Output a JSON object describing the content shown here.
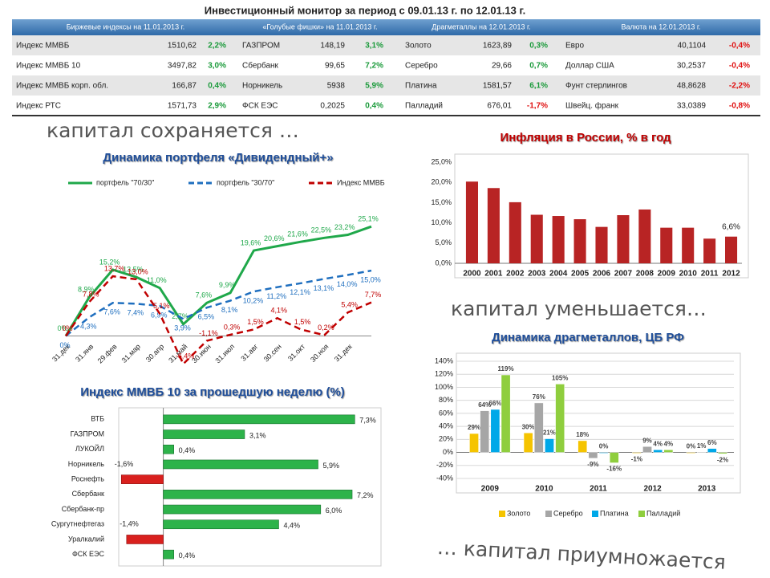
{
  "title": "Инвестиционный монитор за период с 09.01.13 г. по 12.01.13 г.",
  "table": {
    "header": [
      "Биржевые индексы на 11.01.2013 г.",
      "«Голубые фишки» на 11.01.2013 г.",
      "Драгметаллы на 12.01.2013 г.",
      "Валюта на 12.01.2013 г."
    ],
    "rows": [
      [
        "Индекс ММВБ",
        "1510,62",
        "2,2%",
        "ГАЗПРОМ",
        "148,19",
        "3,1%",
        "Золото",
        "1623,89",
        "0,3%",
        "Евро",
        "40,1104",
        "-0,4%"
      ],
      [
        "Индекс ММВБ 10",
        "3497,82",
        "3,0%",
        "Сбербанк",
        "99,65",
        "7,2%",
        "Серебро",
        "29,66",
        "0,7%",
        "Доллар США",
        "30,2537",
        "-0,4%"
      ],
      [
        "Индекс ММВБ корп. обл.",
        "166,87",
        "0,4%",
        "Норникель",
        "5938",
        "5,9%",
        "Платина",
        "1581,57",
        "6,1%",
        "Фунт стерлингов",
        "48,8628",
        "-2,2%"
      ],
      [
        "Индекс РТС",
        "1571,73",
        "2,9%",
        "ФСК ЕЭС",
        "0,2025",
        "0,4%",
        "Палладий",
        "676,01",
        "-1,7%",
        "Швейц. франк",
        "33,0389",
        "-0,8%"
      ]
    ]
  },
  "captions": [
    "капитал сохраняется …",
    "капитал уменьшается…",
    "… капитал приумножается"
  ],
  "chart_data": [
    {
      "type": "line",
      "title": "Динамика портфеля «Дивидендный+»",
      "categories": [
        "31.дек",
        "31.янв",
        "29.фев",
        "31.мар",
        "30.апр",
        "31.май",
        "30.июн",
        "31.июл",
        "31.авг",
        "30.сен",
        "31.окт",
        "30.ноя",
        "31.дек",
        null
      ],
      "ylim": [
        -8,
        29
      ],
      "series": [
        {
          "name": "портфель \"70/30\"",
          "color": "#1fa84a",
          "dash": false,
          "values": [
            0,
            8.9,
            15.2,
            13.5,
            11.0,
            2.7,
            7.6,
            9.9,
            19.6,
            20.6,
            21.6,
            22.5,
            23.2,
            25.1
          ],
          "value_labels": [
            "0%",
            "8,9%",
            "15,2%",
            "13,5%",
            "11,0%",
            "2,7%",
            "7,6%",
            "9,9%",
            "19,6%",
            "20,6%",
            "21,6%",
            "22,5%",
            "23,2%",
            "25,1%"
          ]
        },
        {
          "name": "портфель \"30/70\"",
          "color": "#1f6fbf",
          "dash": true,
          "values": [
            0,
            4.3,
            7.6,
            7.4,
            6.9,
            3.9,
            6.5,
            8.1,
            10.2,
            11.2,
            12.1,
            13.1,
            14.0,
            15.0
          ],
          "value_labels": [
            "0%",
            "4,3%",
            "7,6%",
            "7,4%",
            "6,9%",
            "3,9%",
            "6,5%",
            "8,1%",
            "10,2%",
            "11,2%",
            "12,1%",
            "13,1%",
            "14,0%",
            "15,0%"
          ]
        },
        {
          "name": "Индекс ММВБ",
          "color": "#c00000",
          "dash": true,
          "values": [
            0,
            7.8,
            13.7,
            13.0,
            5.1,
            -6.4,
            -1.1,
            0.3,
            1.5,
            4.1,
            1.5,
            0.2,
            5.4,
            7.7
          ],
          "value_labels": [
            "0%",
            "7,8%",
            "13,7%",
            "13,0%",
            "5,1%",
            "-6,4%",
            "-1,1%",
            "0,3%",
            "1,5%",
            "4,1%",
            "1,5%",
            "0,2%",
            "5,4%",
            "7,7%"
          ]
        }
      ]
    },
    {
      "type": "bar",
      "title": "Инфляция в России, % в год",
      "color": "#b82424",
      "categories": [
        "2000",
        "2001",
        "2002",
        "2003",
        "2004",
        "2005",
        "2006",
        "2007",
        "2008",
        "2009",
        "2010",
        "2011",
        "2012"
      ],
      "values": [
        20.2,
        18.6,
        15.1,
        12.0,
        11.7,
        10.9,
        9.0,
        11.9,
        13.3,
        8.8,
        8.8,
        6.1,
        6.6
      ],
      "value_labels": [
        null,
        null,
        null,
        null,
        null,
        null,
        null,
        null,
        null,
        null,
        null,
        null,
        "6,6%"
      ],
      "ylim": [
        0,
        25
      ],
      "yticks": [
        {
          "value": 0,
          "label": "0,0%"
        },
        {
          "value": 5,
          "label": "5,0%"
        },
        {
          "value": 10,
          "label": "10,0%"
        },
        {
          "value": 15,
          "label": "15,0%"
        },
        {
          "value": 20,
          "label": "20,0%"
        },
        {
          "value": 25,
          "label": "25,0%"
        }
      ]
    },
    {
      "type": "hbar",
      "title": "Индекс ММВБ 10 за прошедшую неделю (%)",
      "color": "#2db34a",
      "negative_color": "#d9201e",
      "categories": [
        "ВТБ",
        "ГАЗПРОМ",
        "ЛУКОЙЛ",
        "Норникель",
        "Роснефть",
        "Сбербанк",
        "Сбербанк-пр",
        "Сургутнефтегаз",
        "Уралкалий",
        "ФСК ЕЭС"
      ],
      "values": [
        7.3,
        3.1,
        0.4,
        5.9,
        -1.6,
        7.2,
        6.0,
        4.4,
        -1.4,
        0.4
      ],
      "value_labels": [
        "7,3%",
        "3,1%",
        "0,4%",
        "5,9%",
        "-1,6%",
        "7,2%",
        "6,0%",
        "4,4%",
        "-1,4%",
        "0,4%"
      ],
      "xlim": [
        -1.7,
        8.3
      ]
    },
    {
      "type": "bar",
      "title": "Динамика драгметаллов, ЦБ РФ",
      "categories": [
        "2009",
        "2010",
        "2011",
        "2012",
        "2013"
      ],
      "ylim": [
        -40,
        140
      ],
      "yticks": [
        {
          "value": -40,
          "label": "-40%"
        },
        {
          "value": -20,
          "label": "-20%"
        },
        {
          "value": 0,
          "label": "0%"
        },
        {
          "value": 20,
          "label": "20%"
        },
        {
          "value": 40,
          "label": "40%"
        },
        {
          "value": 60,
          "label": "60%"
        },
        {
          "value": 80,
          "label": "80%"
        },
        {
          "value": 100,
          "label": "100%"
        },
        {
          "value": 120,
          "label": "120%"
        },
        {
          "value": 140,
          "label": "140%"
        }
      ],
      "grid": true,
      "series": [
        {
          "name": "Золото",
          "color": "#f5c400",
          "values": [
            29,
            30,
            18,
            -1,
            0
          ],
          "value_labels": [
            "29%",
            "30%",
            "18%",
            "-1%",
            "0%"
          ]
        },
        {
          "name": "Серебро",
          "color": "#a6a6a6",
          "values": [
            64,
            76,
            -9,
            9,
            1
          ],
          "value_labels": [
            "64%",
            "76%",
            "-9%",
            "9%",
            "1%"
          ]
        },
        {
          "name": "Платина",
          "color": "#00a8e8",
          "values": [
            66,
            21,
            0,
            4,
            6
          ],
          "value_labels": [
            "66%",
            "21%",
            "0%",
            "4%",
            "6%"
          ]
        },
        {
          "name": "Палладий",
          "color": "#8fce3e",
          "values": [
            119,
            105,
            -16,
            4,
            -2
          ],
          "value_labels": [
            "119%",
            "105%",
            "-16%",
            "4%",
            "-2%"
          ]
        }
      ]
    }
  ]
}
